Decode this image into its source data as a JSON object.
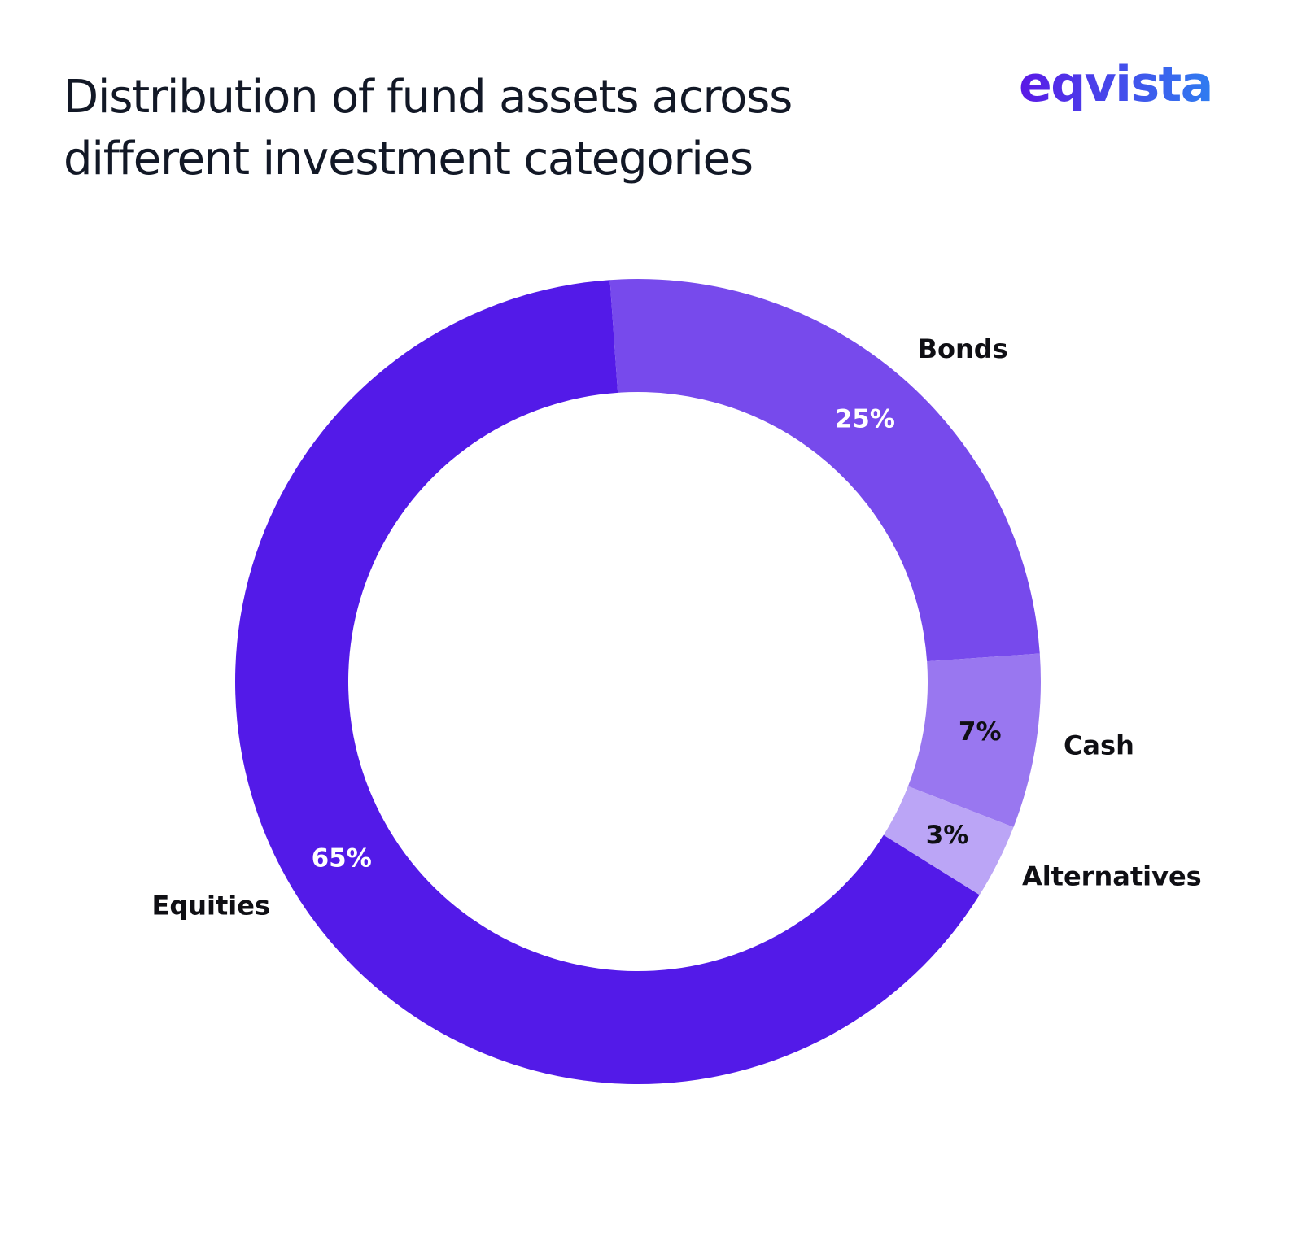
{
  "title": "Distribution of fund assets across different investment categories",
  "brand": {
    "logo_text": "eqvista",
    "gradient_start": "#5b18e6",
    "gradient_end": "#2f7df0"
  },
  "chart_data": {
    "type": "pie",
    "donut": true,
    "title": "Distribution of fund assets across different investment categories",
    "unit": "%",
    "slices": [
      {
        "name": "Equities",
        "value": 65,
        "label": "65%",
        "color": "#531ae8",
        "label_color": "#ffffff"
      },
      {
        "name": "Bonds",
        "value": 25,
        "label": "25%",
        "color": "#774aec",
        "label_color": "#ffffff"
      },
      {
        "name": "Cash",
        "value": 7,
        "label": "7%",
        "color": "#9977f0",
        "label_color": "#0f0f14"
      },
      {
        "name": "Alternatives",
        "value": 3,
        "label": "3%",
        "color": "#bba5f6",
        "label_color": "#0f0f14"
      }
    ],
    "legend": "none"
  }
}
